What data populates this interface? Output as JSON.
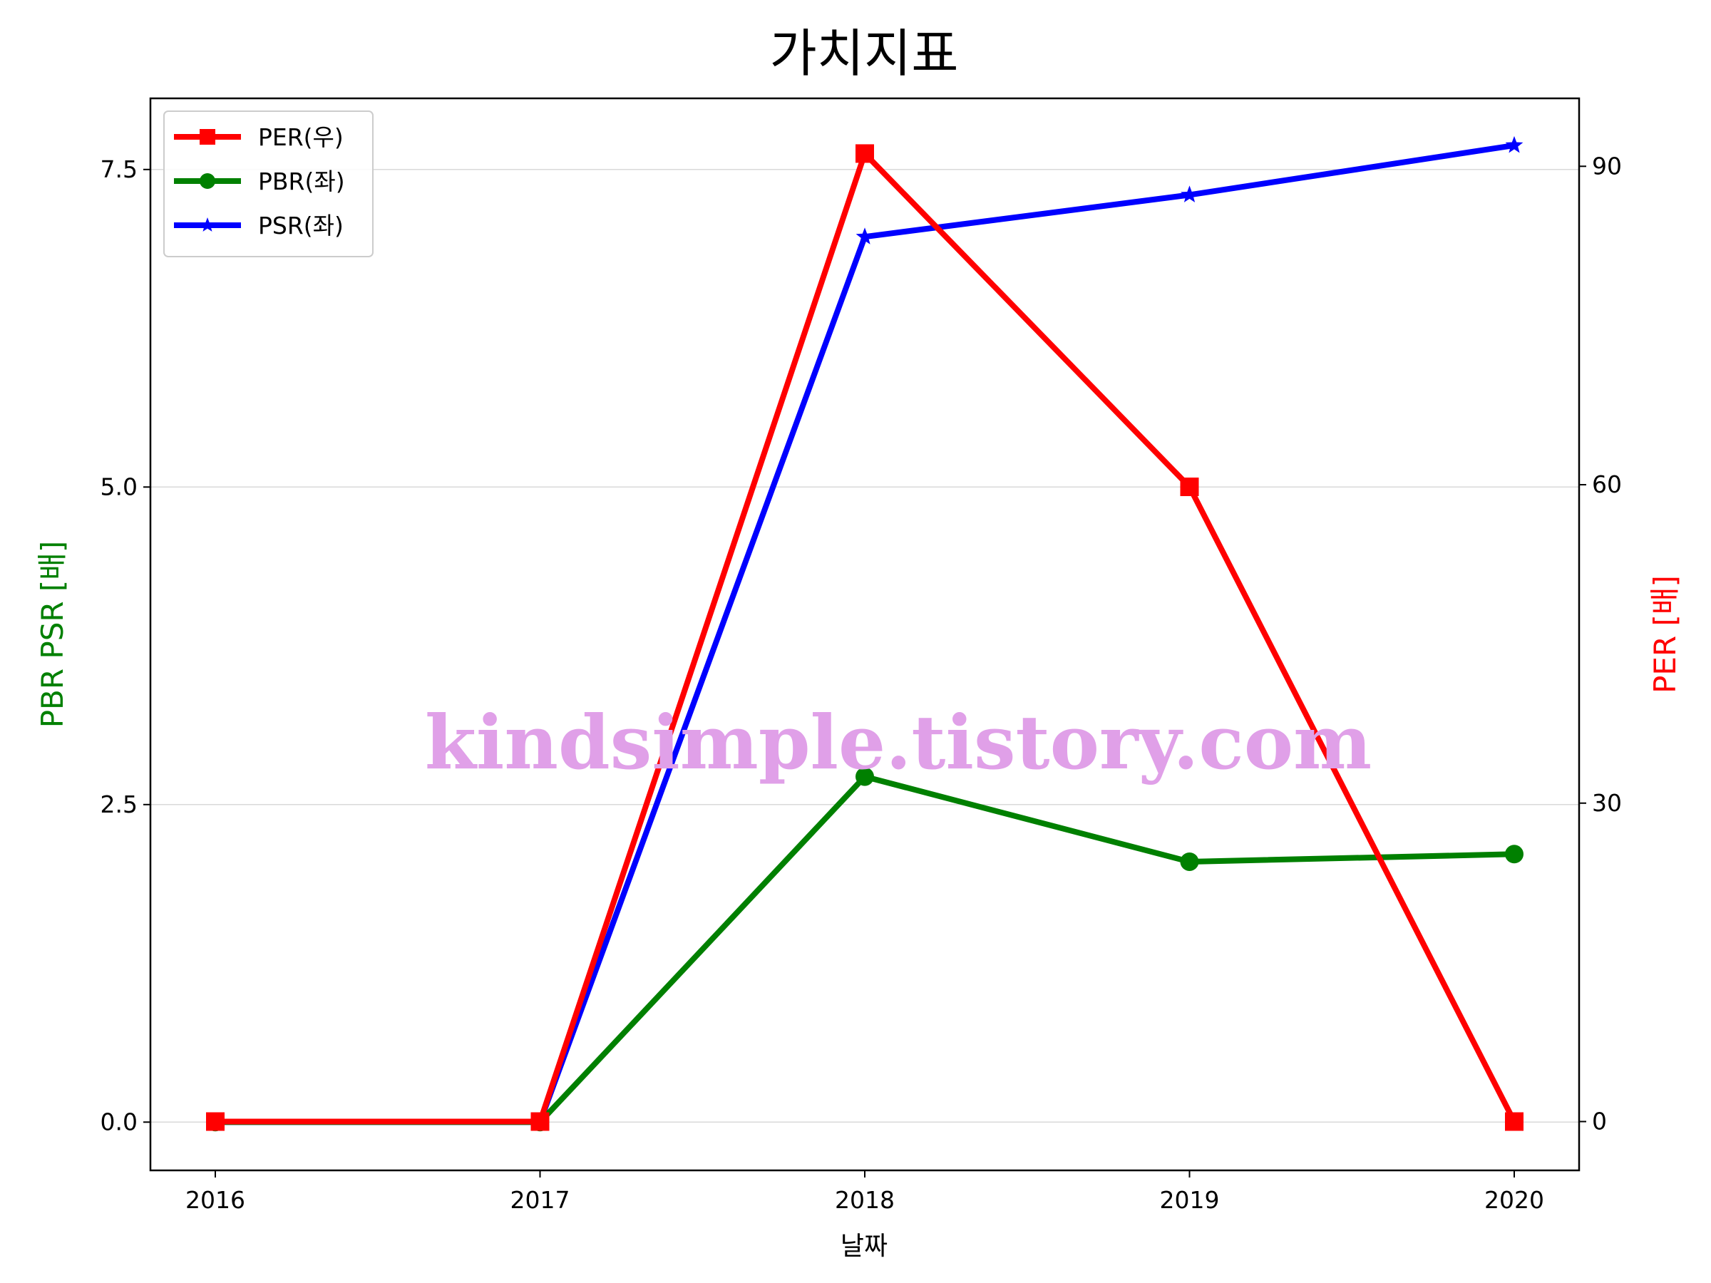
{
  "chart_data": {
    "type": "line",
    "title": "가치지표",
    "xlabel": "날짜",
    "ylabel_left": "PBR PSR [배]",
    "ylabel_right": "PER [배]",
    "categories": [
      "2016",
      "2017",
      "2018",
      "2019",
      "2020"
    ],
    "y_left": {
      "lim": [
        -0.38,
        8.06
      ],
      "ticks": [
        0.0,
        2.5,
        5.0,
        7.5
      ],
      "tick_labels": [
        "0.0",
        "2.5",
        "5.0",
        "7.5"
      ]
    },
    "y_right": {
      "lim": [
        -4.6,
        96.4
      ],
      "ticks": [
        0,
        30,
        60,
        90
      ],
      "tick_labels": [
        "0",
        "30",
        "60",
        "90"
      ]
    },
    "series": [
      {
        "name": "PER(우)",
        "axis": "right",
        "color": "#ff0000",
        "marker": "square",
        "values": [
          0,
          0,
          91.2,
          59.8,
          0
        ]
      },
      {
        "name": "PBR(좌)",
        "axis": "left",
        "color": "#008000",
        "marker": "circle",
        "values": [
          0,
          0,
          2.72,
          2.05,
          2.11
        ]
      },
      {
        "name": "PSR(좌)",
        "axis": "left",
        "color": "#0000ff",
        "marker": "star",
        "values": [
          0,
          0,
          6.97,
          7.3,
          7.69
        ]
      }
    ],
    "grid": "horizontal",
    "legend_position": "top-left",
    "watermark": "kindsimple.tistory.com",
    "watermark_color": "#e0a0e8"
  }
}
